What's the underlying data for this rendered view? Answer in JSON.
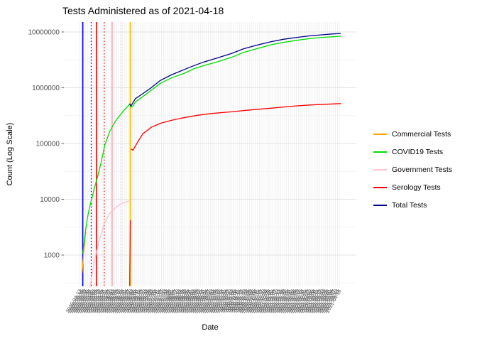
{
  "chart_data": {
    "type": "line",
    "title": "Tests Administered as of 2021-04-18",
    "xlabel": "Date",
    "ylabel": "Count (Log Scale)",
    "y_scale": "log10",
    "grid": {
      "vertical": true,
      "horizontal_major": true,
      "horizontal_minor": true
    },
    "legend_position": "right",
    "y_ticks": [
      10000000,
      1000000,
      100000,
      10000,
      1000
    ],
    "y_tick_labels": [
      "10000000",
      "1000000",
      "100000",
      "10000",
      "1000"
    ],
    "x_domain": [
      "2020-02-18",
      "2021-05-12"
    ],
    "x_ticks": {
      "start": "2020-03-13",
      "end": "2021-04-18",
      "step_days": 3,
      "format": "YYYY-MM-DD",
      "angle_deg": 60
    },
    "series": [
      {
        "name": "Commercial Tests",
        "color": "#FFA500",
        "segments": [
          [
            [
              "2020-03-17",
              480
            ],
            [
              "2020-03-18",
              700
            ],
            [
              "2020-03-19",
              950
            ],
            [
              "2020-03-20",
              1300
            ],
            [
              "2020-03-21",
              1700
            ],
            [
              "2020-03-22",
              2300
            ],
            [
              "2020-03-23",
              2600
            ]
          ]
        ]
      },
      {
        "name": "COVID19 Tests",
        "color": "#00DD00",
        "segments": [
          [
            [
              "2020-03-18",
              1050
            ],
            [
              "2020-03-20",
              1600
            ],
            [
              "2020-03-22",
              2600
            ],
            [
              "2020-03-25",
              4500
            ],
            [
              "2020-03-28",
              6800
            ],
            [
              "2020-04-01",
              10500
            ],
            [
              "2020-04-05",
              16000
            ],
            [
              "2020-04-10",
              26000
            ],
            [
              "2020-04-15",
              45000
            ],
            [
              "2020-04-21",
              95000
            ],
            [
              "2020-04-28",
              160000
            ],
            [
              "2020-05-05",
              230000
            ],
            [
              "2020-05-12",
              300000
            ],
            [
              "2020-05-20",
              390000
            ],
            [
              "2020-05-29",
              510000
            ],
            [
              "2020-05-31",
              450000
            ],
            [
              "2020-06-03",
              470000
            ],
            [
              "2020-06-07",
              560000
            ],
            [
              "2020-06-18",
              690000
            ],
            [
              "2020-07-01",
              900000
            ],
            [
              "2020-07-15",
              1200000
            ],
            [
              "2020-08-01",
              1500000
            ],
            [
              "2020-08-20",
              1800000
            ],
            [
              "2020-09-05",
              2200000
            ],
            [
              "2020-09-20",
              2500000
            ],
            [
              "2020-10-10",
              2900000
            ],
            [
              "2020-11-01",
              3500000
            ],
            [
              "2020-11-20",
              4300000
            ],
            [
              "2020-12-10",
              5000000
            ],
            [
              "2021-01-01",
              5900000
            ],
            [
              "2021-01-20",
              6500000
            ],
            [
              "2021-02-10",
              7100000
            ],
            [
              "2021-03-01",
              7600000
            ],
            [
              "2021-03-20",
              8000000
            ],
            [
              "2021-04-05",
              8200000
            ],
            [
              "2021-04-18",
              8400000
            ]
          ]
        ]
      },
      {
        "name": "Government Tests",
        "color": "#FFC0CB",
        "segments": [
          [
            [
              "2020-03-29",
              260
            ],
            [
              "2020-04-05",
              800
            ],
            [
              "2020-04-12",
              1800
            ],
            [
              "2020-04-20",
              3600
            ],
            [
              "2020-04-28",
              5500
            ],
            [
              "2020-05-08",
              7200
            ],
            [
              "2020-05-18",
              8600
            ],
            [
              "2020-05-30",
              9400
            ]
          ]
        ]
      },
      {
        "name": "Serology Tests",
        "color": "#FF0000",
        "segments": [
          [
            [
              "2020-05-29",
              280
            ],
            [
              "2020-05-30",
              4200
            ]
          ],
          [
            [
              "2020-05-31",
              80000
            ],
            [
              "2020-06-03",
              76000
            ],
            [
              "2020-06-10",
              105000
            ],
            [
              "2020-06-18",
              148000
            ],
            [
              "2020-07-01",
              195000
            ],
            [
              "2020-07-15",
              230000
            ],
            [
              "2020-08-01",
              260000
            ],
            [
              "2020-08-20",
              290000
            ],
            [
              "2020-09-10",
              320000
            ],
            [
              "2020-10-01",
              345000
            ],
            [
              "2020-11-01",
              370000
            ],
            [
              "2020-12-01",
              400000
            ],
            [
              "2021-01-01",
              430000
            ],
            [
              "2021-02-01",
              465000
            ],
            [
              "2021-03-01",
              490000
            ],
            [
              "2021-04-18",
              520000
            ]
          ]
        ]
      },
      {
        "name": "Total Tests",
        "color": "#00008B",
        "segments": [
          [
            [
              "2020-05-29",
              520000
            ],
            [
              "2020-05-31",
              470000
            ],
            [
              "2020-06-07",
              640000
            ],
            [
              "2020-06-18",
              780000
            ],
            [
              "2020-07-01",
              1000000
            ],
            [
              "2020-07-15",
              1350000
            ],
            [
              "2020-08-01",
              1700000
            ],
            [
              "2020-08-20",
              2100000
            ],
            [
              "2020-09-05",
              2500000
            ],
            [
              "2020-09-20",
              2900000
            ],
            [
              "2020-10-10",
              3400000
            ],
            [
              "2020-11-01",
              4100000
            ],
            [
              "2020-11-20",
              5000000
            ],
            [
              "2020-12-10",
              5800000
            ],
            [
              "2021-01-01",
              6700000
            ],
            [
              "2021-01-20",
              7400000
            ],
            [
              "2021-02-10",
              8000000
            ],
            [
              "2021-03-01",
              8500000
            ],
            [
              "2021-03-20",
              8900000
            ],
            [
              "2021-04-05",
              9200000
            ],
            [
              "2021-04-18",
              9400000
            ]
          ]
        ]
      }
    ],
    "vlines": [
      {
        "date": "2020-03-18",
        "color": "#0000FF",
        "style": "solid",
        "width": 1.6
      },
      {
        "date": "2020-03-31",
        "color": "#0000FF",
        "style": "dotted",
        "width": 1.4
      },
      {
        "date": "2020-04-08",
        "color": "#FF0000",
        "style": "solid",
        "width": 1.6
      },
      {
        "date": "2020-04-20",
        "color": "#FF0000",
        "style": "dotted",
        "width": 1.2
      },
      {
        "date": "2020-05-02",
        "color": "#FFB6C1",
        "style": "solid",
        "width": 2
      },
      {
        "date": "2020-05-16",
        "color": "#FFC0CB",
        "style": "dotted",
        "width": 1.2
      },
      {
        "date": "2020-05-30",
        "color": "#FFC000",
        "style": "solid",
        "width": 2
      }
    ]
  },
  "legend": {
    "items": [
      {
        "label": "Commercial Tests"
      },
      {
        "label": "COVID19 Tests"
      },
      {
        "label": "Government Tests"
      },
      {
        "label": "Serology Tests"
      },
      {
        "label": "Total Tests"
      }
    ]
  }
}
